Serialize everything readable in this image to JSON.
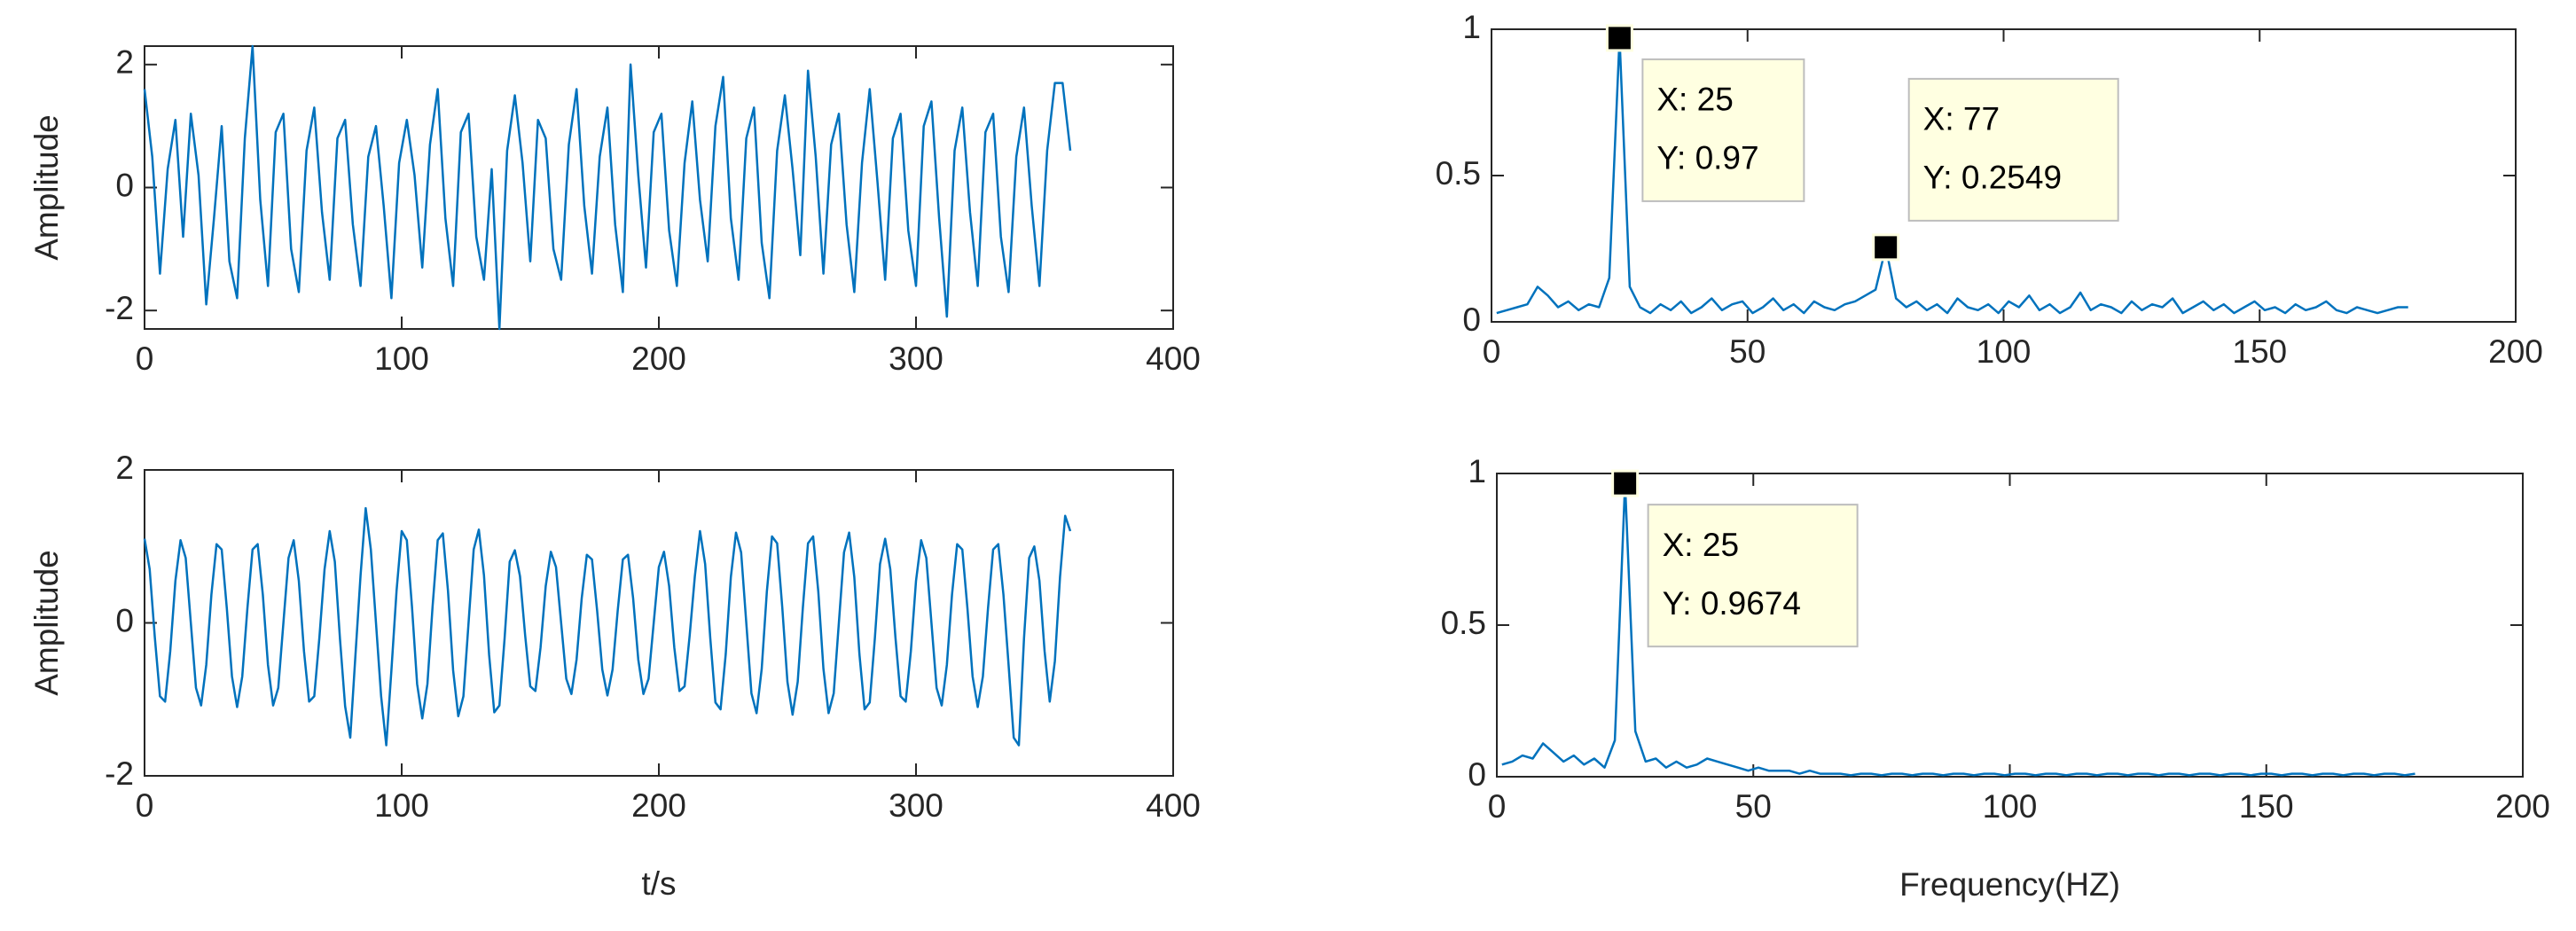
{
  "chart_data": [
    {
      "type": "line",
      "ylabel": "Amplitude",
      "color": "#0072bd",
      "xlim": [
        0,
        400
      ],
      "xticks": [
        0,
        100,
        200,
        300,
        400
      ],
      "ylim": [
        -2.3,
        2.3
      ],
      "yticks": [
        -2,
        0,
        2
      ],
      "x": [
        0,
        3,
        6,
        9,
        12,
        15,
        18,
        21,
        24,
        27,
        30,
        33,
        36,
        39,
        42,
        45,
        48,
        51,
        54,
        57,
        60,
        63,
        66,
        69,
        72,
        75,
        78,
        81,
        84,
        87,
        90,
        93,
        96,
        99,
        102,
        105,
        108,
        111,
        114,
        117,
        120,
        123,
        126,
        129,
        132,
        135,
        138,
        141,
        144,
        147,
        150,
        153,
        156,
        159,
        162,
        165,
        168,
        171,
        174,
        177,
        180,
        183,
        186,
        189,
        192,
        195,
        198,
        201,
        204,
        207,
        210,
        213,
        216,
        219,
        222,
        225,
        228,
        231,
        234,
        237,
        240,
        243,
        246,
        249,
        252,
        255,
        258,
        261,
        264,
        267,
        270,
        273,
        276,
        279,
        282,
        285,
        288,
        291,
        294,
        297,
        300,
        303,
        306,
        309,
        312,
        315,
        318,
        321,
        324,
        327,
        330,
        333,
        336,
        339,
        342,
        345,
        348,
        351,
        354,
        357,
        360
      ],
      "values": [
        1.6,
        0.5,
        -1.4,
        0.3,
        1.1,
        -0.8,
        1.2,
        0.2,
        -1.9,
        -0.5,
        1.0,
        -1.2,
        -1.8,
        0.8,
        2.3,
        -0.2,
        -1.6,
        0.9,
        1.2,
        -1.0,
        -1.7,
        0.6,
        1.3,
        -0.4,
        -1.5,
        0.8,
        1.1,
        -0.6,
        -1.6,
        0.5,
        1.0,
        -0.3,
        -1.8,
        0.4,
        1.1,
        0.2,
        -1.3,
        0.7,
        1.6,
        -0.5,
        -1.6,
        0.9,
        1.2,
        -0.8,
        -1.5,
        0.3,
        -2.3,
        0.6,
        1.5,
        0.4,
        -1.2,
        1.1,
        0.8,
        -1.0,
        -1.5,
        0.7,
        1.6,
        -0.3,
        -1.4,
        0.5,
        1.3,
        -0.6,
        -1.7,
        2.0,
        0.2,
        -1.3,
        0.9,
        1.2,
        -0.7,
        -1.6,
        0.4,
        1.4,
        -0.2,
        -1.2,
        1.0,
        1.8,
        -0.5,
        -1.5,
        0.8,
        1.3,
        -0.9,
        -1.8,
        0.6,
        1.5,
        0.3,
        -1.1,
        1.9,
        0.5,
        -1.4,
        0.7,
        1.2,
        -0.6,
        -1.7,
        0.4,
        1.6,
        0.1,
        -1.5,
        0.8,
        1.2,
        -0.7,
        -1.6,
        1.0,
        1.4,
        -0.5,
        -2.1,
        0.6,
        1.3,
        -0.4,
        -1.6,
        0.9,
        1.2,
        -0.8,
        -1.7,
        0.5,
        1.3,
        -0.3,
        -1.6,
        0.6,
        1.7,
        1.7,
        0.6
      ]
    },
    {
      "type": "line",
      "ylabel": "Amplitude",
      "xlabel": "t/s",
      "color": "#0072bd",
      "xlim": [
        0,
        400
      ],
      "xticks": [
        0,
        100,
        200,
        300,
        400
      ],
      "ylim": [
        -2,
        2
      ],
      "yticks": [
        -2,
        0,
        2
      ],
      "x": [
        0,
        2,
        4,
        6,
        8,
        10,
        12,
        14,
        16,
        18,
        20,
        22,
        24,
        26,
        28,
        30,
        32,
        34,
        36,
        38,
        40,
        42,
        44,
        46,
        48,
        50,
        52,
        54,
        56,
        58,
        60,
        62,
        64,
        66,
        68,
        70,
        72,
        74,
        76,
        78,
        80,
        82,
        84,
        86,
        88,
        90,
        92,
        94,
        96,
        98,
        100,
        102,
        104,
        106,
        108,
        110,
        112,
        114,
        116,
        118,
        120,
        122,
        124,
        126,
        128,
        130,
        132,
        134,
        136,
        138,
        140,
        142,
        144,
        146,
        148,
        150,
        152,
        154,
        156,
        158,
        160,
        162,
        164,
        166,
        168,
        170,
        172,
        174,
        176,
        178,
        180,
        182,
        184,
        186,
        188,
        190,
        192,
        194,
        196,
        198,
        200,
        202,
        204,
        206,
        208,
        210,
        212,
        214,
        216,
        218,
        220,
        222,
        224,
        226,
        228,
        230,
        232,
        234,
        236,
        238,
        240,
        242,
        244,
        246,
        248,
        250,
        252,
        254,
        256,
        258,
        260,
        262,
        264,
        266,
        268,
        270,
        272,
        274,
        276,
        278,
        280,
        282,
        284,
        286,
        288,
        290,
        292,
        294,
        296,
        298,
        300,
        302,
        304,
        306,
        308,
        310,
        312,
        314,
        316,
        318,
        320,
        322,
        324,
        326,
        328,
        330,
        332,
        334,
        336,
        338,
        340,
        342,
        344,
        346,
        348,
        350,
        352,
        354,
        356,
        358,
        360
      ],
      "values": [
        1.1,
        0.7,
        -0.19,
        -0.96,
        -1.03,
        -0.37,
        0.55,
        1.08,
        0.85,
        0,
        -0.85,
        -1.08,
        -0.55,
        0.37,
        1.03,
        0.96,
        0.19,
        -0.7,
        -1.1,
        -0.7,
        0.19,
        0.96,
        1.03,
        0.37,
        -0.55,
        -1.08,
        -0.85,
        0,
        0.85,
        1.08,
        0.55,
        -0.37,
        -1.03,
        -0.96,
        -0.19,
        0.7,
        1.2,
        0.8,
        -0.21,
        -1.09,
        -1.5,
        -0.43,
        0.62,
        1.5,
        0.96,
        0,
        -0.96,
        -1.6,
        -0.62,
        0.42,
        1.2,
        1.08,
        0.21,
        -0.8,
        -1.25,
        -0.8,
        0.21,
        1.08,
        1.17,
        0.42,
        -0.62,
        -1.22,
        -0.96,
        0,
        0.96,
        1.22,
        0.62,
        -0.42,
        -1.17,
        -1.08,
        -0.21,
        0.8,
        0.95,
        0.61,
        -0.16,
        -0.83,
        -0.89,
        -0.32,
        0.48,
        0.93,
        0.73,
        0,
        -0.73,
        -0.93,
        -0.48,
        0.32,
        0.89,
        0.83,
        0.16,
        -0.61,
        -0.95,
        -0.61,
        0.16,
        0.83,
        0.89,
        0.32,
        -0.48,
        -0.93,
        -0.73,
        0,
        0.73,
        0.93,
        0.48,
        -0.32,
        -0.89,
        -0.83,
        -0.16,
        0.61,
        1.2,
        0.77,
        -0.2,
        -1.04,
        -1.13,
        -0.41,
        0.6,
        1.18,
        0.92,
        0,
        -0.92,
        -1.18,
        -0.6,
        0.41,
        1.13,
        1.04,
        0.2,
        -0.77,
        -1.2,
        -0.77,
        0.2,
        1.04,
        1.13,
        0.41,
        -0.6,
        -1.18,
        -0.92,
        0,
        0.92,
        1.18,
        0.6,
        -0.41,
        -1.13,
        -1.04,
        -0.2,
        0.77,
        1.1,
        0.7,
        -0.19,
        -0.96,
        -1.03,
        -0.37,
        0.55,
        1.08,
        0.85,
        0,
        -0.85,
        -1.08,
        -0.55,
        0.37,
        1.03,
        0.96,
        0.19,
        -0.7,
        -1.1,
        -0.7,
        0.19,
        0.96,
        1.03,
        0.37,
        -0.55,
        -1.5,
        -1.6,
        -0.2,
        0.85,
        1.0,
        0.55,
        -0.37,
        -1.03,
        -0.5,
        0.6,
        1.4,
        1.2
      ]
    },
    {
      "type": "line",
      "color": "#0072bd",
      "xlim": [
        0,
        200
      ],
      "xticks": [
        0,
        50,
        100,
        150,
        200
      ],
      "ylim": [
        0,
        1
      ],
      "yticks": [
        0,
        0.5,
        1
      ],
      "x": [
        1,
        3,
        5,
        7,
        9,
        11,
        13,
        15,
        17,
        19,
        21,
        23,
        25,
        27,
        29,
        31,
        33,
        35,
        37,
        39,
        41,
        43,
        45,
        47,
        49,
        51,
        53,
        55,
        57,
        59,
        61,
        63,
        65,
        67,
        69,
        71,
        73,
        75,
        77,
        79,
        81,
        83,
        85,
        87,
        89,
        91,
        93,
        95,
        97,
        99,
        101,
        103,
        105,
        107,
        109,
        111,
        113,
        115,
        117,
        119,
        121,
        123,
        125,
        127,
        129,
        131,
        133,
        135,
        137,
        139,
        141,
        143,
        145,
        147,
        149,
        151,
        153,
        155,
        157,
        159,
        161,
        163,
        165,
        167,
        169,
        171,
        173,
        175,
        177,
        179
      ],
      "values": [
        0.03,
        0.04,
        0.05,
        0.06,
        0.12,
        0.09,
        0.05,
        0.07,
        0.04,
        0.06,
        0.05,
        0.15,
        0.97,
        0.12,
        0.05,
        0.03,
        0.06,
        0.04,
        0.07,
        0.03,
        0.05,
        0.08,
        0.04,
        0.06,
        0.07,
        0.03,
        0.05,
        0.08,
        0.04,
        0.06,
        0.03,
        0.07,
        0.05,
        0.04,
        0.06,
        0.07,
        0.09,
        0.11,
        0.2549,
        0.08,
        0.05,
        0.07,
        0.04,
        0.06,
        0.03,
        0.08,
        0.05,
        0.04,
        0.06,
        0.03,
        0.07,
        0.05,
        0.09,
        0.04,
        0.06,
        0.03,
        0.05,
        0.1,
        0.04,
        0.06,
        0.05,
        0.03,
        0.07,
        0.04,
        0.06,
        0.05,
        0.08,
        0.03,
        0.05,
        0.07,
        0.04,
        0.06,
        0.03,
        0.05,
        0.07,
        0.04,
        0.05,
        0.03,
        0.06,
        0.04,
        0.05,
        0.07,
        0.04,
        0.03,
        0.05,
        0.04,
        0.03,
        0.04,
        0.05,
        0.05
      ],
      "annotations": [
        {
          "x": 25,
          "y": 0.97,
          "label_x": "X: 25",
          "label_y": "Y: 0.97"
        },
        {
          "x": 77,
          "y": 0.2549,
          "label_x": "X: 77",
          "label_y": "Y: 0.2549"
        }
      ]
    },
    {
      "type": "line",
      "xlabel": "Frequency(HZ)",
      "color": "#0072bd",
      "xlim": [
        0,
        200
      ],
      "xticks": [
        0,
        50,
        100,
        150,
        200
      ],
      "ylim": [
        0,
        1
      ],
      "yticks": [
        0,
        0.5,
        1
      ],
      "x": [
        1,
        3,
        5,
        7,
        9,
        11,
        13,
        15,
        17,
        19,
        21,
        23,
        25,
        27,
        29,
        31,
        33,
        35,
        37,
        39,
        41,
        43,
        45,
        47,
        49,
        51,
        53,
        55,
        57,
        59,
        61,
        63,
        65,
        67,
        69,
        71,
        73,
        75,
        77,
        79,
        81,
        83,
        85,
        87,
        89,
        91,
        93,
        95,
        97,
        99,
        101,
        103,
        105,
        107,
        109,
        111,
        113,
        115,
        117,
        119,
        121,
        123,
        125,
        127,
        129,
        131,
        133,
        135,
        137,
        139,
        141,
        143,
        145,
        147,
        149,
        151,
        153,
        155,
        157,
        159,
        161,
        163,
        165,
        167,
        169,
        171,
        173,
        175,
        177,
        179
      ],
      "values": [
        0.04,
        0.05,
        0.07,
        0.06,
        0.11,
        0.08,
        0.05,
        0.07,
        0.04,
        0.06,
        0.03,
        0.12,
        0.9674,
        0.15,
        0.05,
        0.06,
        0.03,
        0.05,
        0.03,
        0.04,
        0.06,
        0.05,
        0.04,
        0.03,
        0.02,
        0.03,
        0.02,
        0.02,
        0.02,
        0.01,
        0.02,
        0.01,
        0.01,
        0.01,
        0.005,
        0.01,
        0.01,
        0.005,
        0.01,
        0.01,
        0.005,
        0.01,
        0.01,
        0.005,
        0.01,
        0.01,
        0.005,
        0.01,
        0.01,
        0.005,
        0.01,
        0.01,
        0.005,
        0.01,
        0.01,
        0.005,
        0.01,
        0.01,
        0.005,
        0.01,
        0.01,
        0.005,
        0.01,
        0.01,
        0.005,
        0.01,
        0.01,
        0.005,
        0.01,
        0.01,
        0.005,
        0.01,
        0.01,
        0.005,
        0.01,
        0.01,
        0.005,
        0.01,
        0.01,
        0.005,
        0.01,
        0.01,
        0.005,
        0.01,
        0.01,
        0.005,
        0.01,
        0.01,
        0.005,
        0.01
      ],
      "annotations": [
        {
          "x": 25,
          "y": 0.9674,
          "label_x": "X: 25",
          "label_y": "Y: 0.9674"
        }
      ]
    }
  ]
}
